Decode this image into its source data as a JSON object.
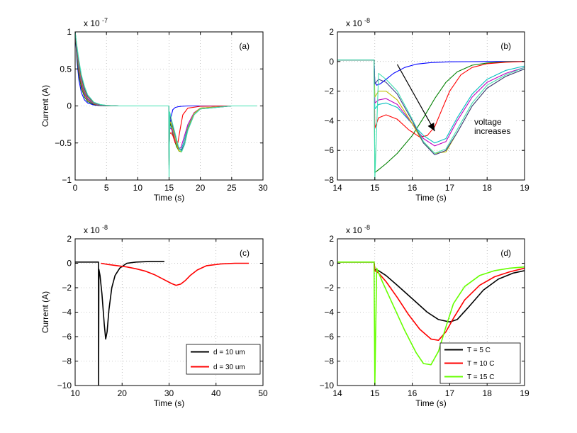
{
  "chart_data": [
    {
      "type": "line",
      "panel_label": "(a)",
      "xlabel": "Time (s)",
      "ylabel": "Current (A)",
      "exponent_label": "x 10",
      "exponent_power": "-7",
      "xlim": [
        0,
        30
      ],
      "ylim": [
        -1,
        1
      ],
      "xticks": [
        0,
        5,
        10,
        15,
        20,
        25,
        30
      ],
      "yticks": [
        -1,
        -0.5,
        0,
        0.5,
        1
      ],
      "ytick_labels": [
        "−1",
        "−0.5",
        "0",
        "0.5",
        "1"
      ],
      "grid": true,
      "series": [
        {
          "color": "#0000ff",
          "x": [
            0,
            0.3,
            0.6,
            1,
            1.5,
            2,
            3,
            4,
            5,
            7,
            10,
            14.95,
            15.0,
            15.1,
            15.3,
            15.6,
            16,
            16.5,
            17,
            18,
            20,
            25,
            29
          ],
          "y": [
            1.0,
            0.6,
            0.35,
            0.18,
            0.08,
            0.04,
            0.012,
            0.004,
            0.001,
            0,
            0,
            0,
            -0.4,
            -0.3,
            -0.15,
            -0.05,
            -0.02,
            -0.01,
            -0.005,
            0,
            0,
            0,
            0
          ]
        },
        {
          "color": "#008000",
          "x": [
            0,
            0.3,
            0.6,
            1,
            1.5,
            2,
            3,
            4,
            5,
            7,
            10,
            14.95,
            15.0,
            15.1,
            15.4,
            15.8,
            16.2,
            16.6,
            17,
            17.5,
            18,
            19,
            20,
            25,
            29
          ],
          "y": [
            1.0,
            0.65,
            0.42,
            0.24,
            0.12,
            0.06,
            0.02,
            0.007,
            0.002,
            0,
            0,
            0,
            -0.8,
            -0.2,
            -0.3,
            -0.45,
            -0.55,
            -0.61,
            -0.62,
            -0.5,
            -0.3,
            -0.1,
            -0.03,
            0,
            0
          ]
        },
        {
          "color": "#ff0000",
          "x": [
            0,
            0.3,
            0.6,
            1,
            1.5,
            2,
            3,
            4,
            5,
            7,
            10,
            14.95,
            15.0,
            15.1,
            15.3,
            15.6,
            16,
            16.4,
            16.8,
            17.2,
            18,
            20,
            25,
            29
          ],
          "y": [
            1.0,
            0.7,
            0.47,
            0.28,
            0.15,
            0.08,
            0.025,
            0.009,
            0.003,
            0,
            0,
            0,
            -0.6,
            -0.38,
            -0.36,
            -0.4,
            -0.5,
            -0.5,
            -0.3,
            -0.12,
            -0.03,
            -0.005,
            0,
            0
          ]
        },
        {
          "color": "#00bfbf",
          "x": [
            0,
            0.3,
            0.6,
            1,
            1.5,
            2,
            3,
            4,
            5,
            7,
            10,
            14.95,
            15.0,
            15.1,
            15.5,
            16,
            16.5,
            16.9,
            17.3,
            18,
            19,
            20,
            25,
            29
          ],
          "y": [
            1.0,
            0.72,
            0.5,
            0.31,
            0.17,
            0.09,
            0.03,
            0.011,
            0.004,
            0,
            0,
            0,
            -0.7,
            -0.28,
            -0.3,
            -0.45,
            -0.58,
            -0.6,
            -0.5,
            -0.28,
            -0.1,
            -0.04,
            0,
            0
          ]
        },
        {
          "color": "#bf00bf",
          "x": [
            0,
            0.3,
            0.6,
            1,
            1.5,
            2,
            3,
            4,
            5,
            7,
            10,
            14.95,
            15.0,
            15.1,
            15.5,
            16,
            16.5,
            16.9,
            17.3,
            18,
            19,
            20,
            25,
            29
          ],
          "y": [
            1.0,
            0.74,
            0.53,
            0.33,
            0.19,
            0.1,
            0.035,
            0.013,
            0.005,
            0,
            0,
            0,
            -0.75,
            -0.3,
            -0.32,
            -0.47,
            -0.58,
            -0.56,
            -0.45,
            -0.25,
            -0.09,
            -0.03,
            0,
            0
          ]
        },
        {
          "color": "#bfbf00",
          "x": [
            0,
            0.3,
            0.6,
            1,
            1.5,
            2,
            3,
            4,
            5,
            7,
            10,
            14.95,
            15.0,
            15.1,
            15.5,
            16,
            16.5,
            17,
            17.5,
            18,
            19,
            20,
            25,
            29
          ],
          "y": [
            1.0,
            0.76,
            0.56,
            0.36,
            0.21,
            0.12,
            0.04,
            0.015,
            0.006,
            0,
            0,
            0,
            -0.8,
            -0.2,
            -0.28,
            -0.45,
            -0.6,
            -0.62,
            -0.5,
            -0.3,
            -0.1,
            -0.03,
            0,
            0
          ]
        },
        {
          "color": "#3c3c8c",
          "x": [
            0,
            0.3,
            0.6,
            1,
            1.5,
            2,
            3,
            4,
            5,
            7,
            10,
            14.95,
            15.0,
            15.1,
            15.5,
            16,
            16.5,
            17,
            17.5,
            18,
            19,
            20,
            25,
            29
          ],
          "y": [
            1.0,
            0.78,
            0.59,
            0.39,
            0.23,
            0.13,
            0.045,
            0.017,
            0.007,
            0,
            0,
            0,
            -0.85,
            -0.12,
            -0.25,
            -0.4,
            -0.56,
            -0.6,
            -0.5,
            -0.32,
            -0.12,
            -0.04,
            0,
            0
          ]
        },
        {
          "color": "#40e0b0",
          "x": [
            0,
            0.3,
            0.6,
            1,
            1.5,
            2,
            3,
            4,
            5,
            7,
            10,
            14.95,
            15.0,
            15.1,
            15.5,
            16,
            16.5,
            17,
            17.5,
            18,
            19,
            20,
            25,
            29
          ],
          "y": [
            1.0,
            0.8,
            0.62,
            0.42,
            0.26,
            0.15,
            0.05,
            0.02,
            0.008,
            0,
            0,
            0,
            -1.0,
            -0.08,
            -0.22,
            -0.38,
            -0.55,
            -0.62,
            -0.52,
            -0.33,
            -0.12,
            -0.04,
            0,
            0
          ]
        }
      ]
    },
    {
      "type": "line",
      "panel_label": "(b)",
      "xlabel": "Time (s)",
      "ylabel": "",
      "exponent_label": "x 10",
      "exponent_power": "-8",
      "xlim": [
        14,
        19
      ],
      "ylim": [
        -8,
        2
      ],
      "xticks": [
        14,
        15,
        16,
        17,
        18,
        19
      ],
      "yticks": [
        -8,
        -6,
        -4,
        -2,
        0,
        2
      ],
      "ytick_labels": [
        "−8",
        "−6",
        "−4",
        "−2",
        "0",
        "2"
      ],
      "grid": true,
      "annotation": {
        "line1": "voltage",
        "line2": "increases",
        "arrow_from": [
          15.6,
          -0.2
        ],
        "arrow_to": [
          16.6,
          -4.7
        ],
        "text_at": [
          16.5,
          -3.9
        ]
      },
      "series": [
        {
          "color": "#0000ff",
          "x": [
            14,
            14.98,
            15.0,
            15.05,
            15.15,
            15.3,
            15.5,
            15.8,
            16.1,
            16.5,
            17,
            17.5,
            18,
            19
          ],
          "y": [
            0.1,
            0.1,
            -1.4,
            -1.6,
            -1.5,
            -1.2,
            -0.8,
            -0.4,
            -0.18,
            -0.07,
            -0.02,
            -0.01,
            0,
            0
          ]
        },
        {
          "color": "#008000",
          "x": [
            14,
            14.98,
            15.0,
            15.1,
            15.3,
            15.6,
            16.0,
            16.3,
            16.6,
            16.9,
            17.2,
            17.6,
            18,
            18.5,
            19
          ],
          "y": [
            0.1,
            0.1,
            -7.5,
            -7.3,
            -6.9,
            -6.2,
            -5.0,
            -3.8,
            -2.5,
            -1.4,
            -0.7,
            -0.25,
            -0.1,
            -0.02,
            0
          ]
        },
        {
          "color": "#ff0000",
          "x": [
            14,
            14.98,
            15.0,
            15.1,
            15.3,
            15.6,
            15.9,
            16.2,
            16.4,
            16.6,
            16.8,
            17.0,
            17.3,
            17.6,
            18,
            18.5,
            19
          ],
          "y": [
            0.1,
            0.1,
            -4.5,
            -3.8,
            -3.6,
            -3.9,
            -4.6,
            -5.1,
            -5.0,
            -4.4,
            -3.2,
            -2.0,
            -0.9,
            -0.4,
            -0.15,
            -0.05,
            0
          ]
        },
        {
          "color": "#00bfbf",
          "x": [
            14,
            14.98,
            15.0,
            15.1,
            15.3,
            15.6,
            16.0,
            16.3,
            16.6,
            16.9,
            17.2,
            17.6,
            18,
            18.5,
            19
          ],
          "y": [
            0.1,
            0.1,
            -3.2,
            -2.9,
            -2.8,
            -3.1,
            -4.2,
            -5.0,
            -5.5,
            -5.2,
            -3.8,
            -2.2,
            -1.2,
            -0.6,
            -0.3
          ]
        },
        {
          "color": "#bf00bf",
          "x": [
            14,
            14.98,
            15.0,
            15.1,
            15.3,
            15.6,
            16.0,
            16.3,
            16.6,
            16.9,
            17.2,
            17.6,
            18,
            18.5,
            19
          ],
          "y": [
            0.1,
            0.1,
            -2.8,
            -2.6,
            -2.5,
            -2.9,
            -4.2,
            -5.2,
            -5.7,
            -5.4,
            -4.0,
            -2.4,
            -1.4,
            -0.8,
            -0.4
          ]
        },
        {
          "color": "#bfbf00",
          "x": [
            14,
            14.98,
            15.0,
            15.1,
            15.3,
            15.6,
            16.0,
            16.3,
            16.6,
            16.9,
            17.2,
            17.6,
            18,
            18.5,
            19
          ],
          "y": [
            0.1,
            0.1,
            -2.4,
            -2.0,
            -2.0,
            -2.6,
            -4.2,
            -5.5,
            -6.2,
            -6.1,
            -4.8,
            -3.0,
            -1.8,
            -1.0,
            -0.5
          ]
        },
        {
          "color": "#3c3c8c",
          "x": [
            14,
            14.98,
            15.0,
            15.1,
            15.3,
            15.6,
            16.0,
            16.3,
            16.6,
            16.9,
            17.2,
            17.6,
            18,
            18.5,
            19
          ],
          "y": [
            0.1,
            0.1,
            -1.5,
            -1.2,
            -1.4,
            -2.2,
            -4.0,
            -5.5,
            -6.3,
            -6.0,
            -4.8,
            -3.0,
            -1.8,
            -1.0,
            -0.5
          ]
        },
        {
          "color": "#40e0b0",
          "x": [
            14,
            14.98,
            15.0,
            15.1,
            15.3,
            15.6,
            16.0,
            16.3,
            16.6,
            16.9,
            17.2,
            17.6,
            18,
            18.5,
            19
          ],
          "y": [
            0.1,
            0.1,
            -8.0,
            -0.8,
            -1.2,
            -2.0,
            -3.9,
            -5.4,
            -6.2,
            -5.9,
            -4.6,
            -2.8,
            -1.6,
            -0.9,
            -0.4
          ]
        }
      ]
    },
    {
      "type": "line",
      "panel_label": "(c)",
      "xlabel": "Time (s)",
      "ylabel": "Current (A)",
      "exponent_label": "x 10",
      "exponent_power": "-8",
      "xlim": [
        10,
        50
      ],
      "ylim": [
        -10,
        2
      ],
      "xticks": [
        10,
        20,
        30,
        40,
        50
      ],
      "yticks": [
        -10,
        -8,
        -6,
        -4,
        -2,
        0,
        2
      ],
      "ytick_labels": [
        "−10",
        "−8",
        "−6",
        "−4",
        "−2",
        "0",
        "2"
      ],
      "grid": true,
      "legend": {
        "position": "lower-right"
      },
      "series": [
        {
          "name": "d = 10 um",
          "color": "#000000",
          "x": [
            10,
            14.97,
            15.0,
            15.05,
            15.3,
            15.7,
            16.2,
            16.5,
            16.8,
            17.2,
            17.8,
            18.5,
            19.5,
            21,
            23,
            26,
            29
          ],
          "y": [
            0.1,
            0.1,
            -10,
            -0.5,
            -1.0,
            -2.5,
            -5.0,
            -6.2,
            -5.6,
            -3.8,
            -2.0,
            -1.0,
            -0.4,
            0,
            0.1,
            0.15,
            0.15
          ]
        },
        {
          "name": "d = 30 um",
          "color": "#ff0000",
          "x": [
            15.5,
            17,
            19,
            21,
            23,
            25,
            27,
            29,
            30.5,
            31.5,
            32.5,
            33.5,
            34.5,
            36,
            38,
            41,
            44,
            47
          ],
          "y": [
            0,
            -0.1,
            -0.2,
            -0.3,
            -0.45,
            -0.65,
            -0.95,
            -1.35,
            -1.65,
            -1.8,
            -1.7,
            -1.4,
            -1.0,
            -0.55,
            -0.2,
            -0.05,
            0,
            0
          ]
        }
      ]
    },
    {
      "type": "line",
      "panel_label": "(d)",
      "xlabel": "Time (s)",
      "ylabel": "",
      "exponent_label": "x 10",
      "exponent_power": "-8",
      "xlim": [
        14,
        19
      ],
      "ylim": [
        -10,
        2
      ],
      "xticks": [
        14,
        15,
        16,
        17,
        18,
        19
      ],
      "yticks": [
        -10,
        -8,
        -6,
        -4,
        -2,
        0,
        2
      ],
      "ytick_labels": [
        "−10",
        "−8",
        "−6",
        "−4",
        "−2",
        "0",
        "2"
      ],
      "grid": true,
      "legend": {
        "position": "lower-right"
      },
      "series": [
        {
          "name": "T = 5 C",
          "color": "#000000",
          "x": [
            14,
            14.98,
            15.0,
            15.1,
            15.3,
            15.6,
            16.0,
            16.4,
            16.7,
            17.0,
            17.2,
            17.5,
            17.9,
            18.3,
            18.7,
            19
          ],
          "y": [
            0.1,
            0.1,
            -0.5,
            -0.6,
            -1.0,
            -1.8,
            -2.9,
            -4.0,
            -4.6,
            -4.8,
            -4.6,
            -3.6,
            -2.2,
            -1.3,
            -0.8,
            -0.6
          ]
        },
        {
          "name": "T = 10 C",
          "color": "#ff0000",
          "x": [
            14,
            14.98,
            15.0,
            15.1,
            15.3,
            15.6,
            15.9,
            16.2,
            16.5,
            16.7,
            16.9,
            17.1,
            17.4,
            17.8,
            18.2,
            18.6,
            19
          ],
          "y": [
            0.1,
            0.1,
            -0.6,
            -0.8,
            -1.5,
            -2.8,
            -4.2,
            -5.4,
            -6.2,
            -6.3,
            -5.6,
            -4.5,
            -3.0,
            -1.8,
            -1.1,
            -0.7,
            -0.4
          ]
        },
        {
          "name": "T = 15 C",
          "color": "#66ff00",
          "x": [
            14,
            14.98,
            15.0,
            15.05,
            15.2,
            15.5,
            15.8,
            16.1,
            16.3,
            16.5,
            16.7,
            16.9,
            17.1,
            17.4,
            17.8,
            18.2,
            18.6,
            19
          ],
          "y": [
            0.1,
            0.1,
            -10,
            -0.4,
            -1.5,
            -3.5,
            -5.5,
            -7.3,
            -8.2,
            -8.3,
            -7.2,
            -5.2,
            -3.3,
            -1.9,
            -1.0,
            -0.6,
            -0.4,
            -0.3
          ]
        }
      ]
    }
  ]
}
